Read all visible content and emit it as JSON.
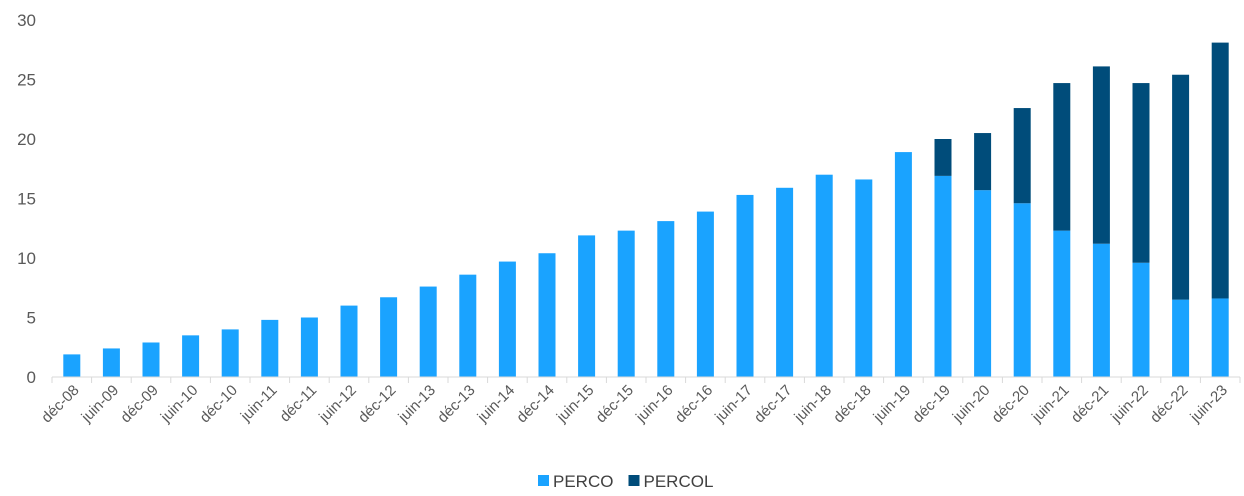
{
  "chart_data": {
    "type": "bar",
    "stacked": true,
    "title": "",
    "xlabel": "",
    "ylabel": "",
    "ylim": [
      0,
      30
    ],
    "yticks": [
      0,
      5,
      10,
      15,
      20,
      25,
      30
    ],
    "grid": false,
    "legend_position": "bottom-center",
    "categories": [
      "déc-08",
      "juin-09",
      "déc-09",
      "juin-10",
      "déc-10",
      "juin-11",
      "déc-11",
      "juin-12",
      "déc-12",
      "juin-13",
      "déc-13",
      "juin-14",
      "déc-14",
      "juin-15",
      "déc-15",
      "juin-16",
      "déc-16",
      "juin-17",
      "déc-17",
      "juin-18",
      "déc-18",
      "juin-19",
      "déc-19",
      "juin-20",
      "déc-20",
      "juin-21",
      "déc-21",
      "juin-22",
      "déc-22",
      "juin-23"
    ],
    "series": [
      {
        "name": "PERCO",
        "color": "#1aa3ff",
        "values": [
          1.9,
          2.4,
          2.9,
          3.5,
          4.0,
          4.8,
          5.0,
          6.0,
          6.7,
          7.6,
          8.6,
          9.7,
          10.4,
          11.9,
          12.3,
          13.1,
          13.9,
          15.3,
          15.9,
          17.0,
          16.6,
          18.9,
          16.9,
          15.7,
          14.6,
          12.3,
          11.2,
          9.6,
          6.5,
          6.6
        ]
      },
      {
        "name": "PERCOL",
        "color": "#004c7a",
        "values": [
          0,
          0,
          0,
          0,
          0,
          0,
          0,
          0,
          0,
          0,
          0,
          0,
          0,
          0,
          0,
          0,
          0,
          0,
          0,
          0,
          0,
          0,
          3.1,
          4.8,
          8.0,
          12.4,
          14.9,
          15.1,
          18.9,
          21.5
        ]
      }
    ]
  }
}
